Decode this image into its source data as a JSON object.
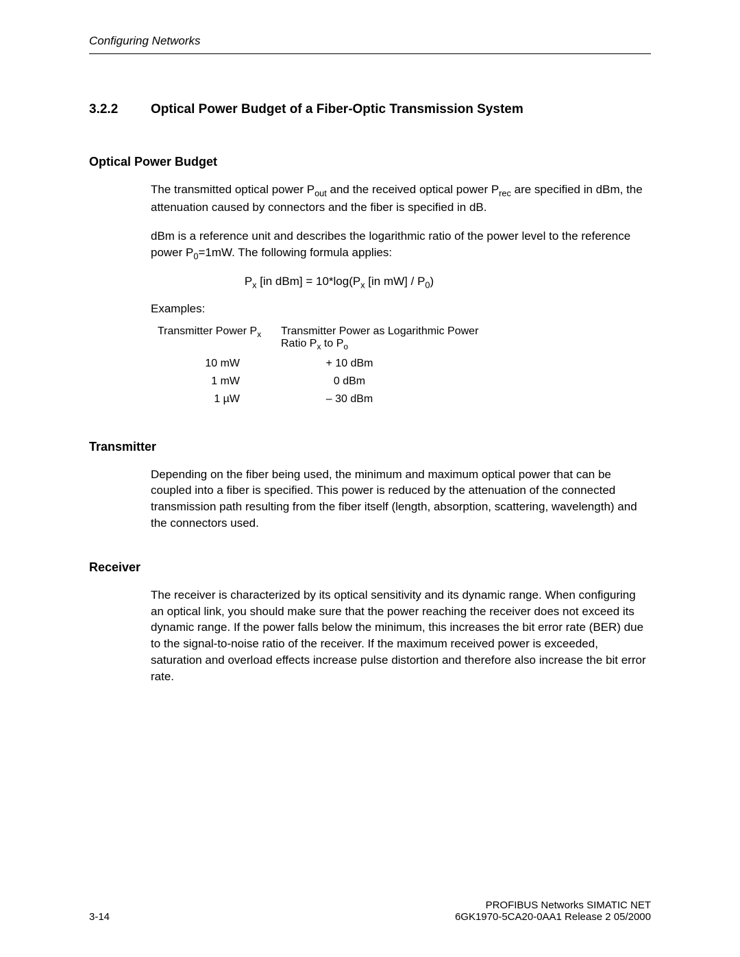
{
  "header": {
    "running_title": "Configuring Networks"
  },
  "section": {
    "number": "3.2.2",
    "title": "Optical Power Budget of a Fiber-Optic Transmission System"
  },
  "optical_power_budget": {
    "heading": "Optical Power Budget",
    "para1_pre": "The transmitted optical power P",
    "para1_sub1": "out",
    "para1_mid": " and the received optical power P",
    "para1_sub2": "rec",
    "para1_post": " are specified in dBm, the attenuation caused by connectors and the fiber is specified in dB.",
    "para2_pre": "dBm is a reference unit and describes the logarithmic ratio of the power level to the reference power P",
    "para2_sub": "0",
    "para2_post": "=1mW. The following formula applies:",
    "formula_a": "P",
    "formula_sub1": "x",
    "formula_b": " [in dBm] = 10*log(P",
    "formula_sub2": "x",
    "formula_c": " [in mW] / P",
    "formula_sub3": "0",
    "formula_d": ")",
    "examples_label": "Examples:",
    "table_header_col1_a": "Transmitter Power P",
    "table_header_col1_sub": "x",
    "table_header_col2_a": "Transmitter Power as Logarithmic Power Ratio P",
    "table_header_col2_sub1": "x",
    "table_header_col2_b": " to P",
    "table_header_col2_sub2": "o",
    "rows": [
      {
        "power": "10  mW",
        "dbm": "+ 10 dBm"
      },
      {
        "power": "1  mW",
        "dbm": "0  dBm"
      },
      {
        "power": "1  µW",
        "dbm": "– 30   dBm"
      }
    ]
  },
  "transmitter": {
    "heading": "Transmitter",
    "para": "Depending on the fiber being used, the minimum and maximum optical power that can be coupled into a fiber is specified. This power is reduced by the attenuation of the connected transmission path resulting from the fiber itself (length, absorption, scattering, wavelength) and the connectors used."
  },
  "receiver": {
    "heading": "Receiver",
    "para": "The receiver is characterized by its optical sensitivity and its dynamic range. When configuring an optical link, you should make sure that the power reaching the receiver does not exceed its dynamic range. If the power falls below the minimum, this increases the bit error rate (BER) due to the signal-to-noise ratio of the receiver. If the maximum received power is exceeded, saturation and overload effects increase pulse distortion and therefore also increase the bit error rate."
  },
  "footer": {
    "page_num": "3-14",
    "line1": "PROFIBUS Networks SIMATIC NET",
    "line2": "6GK1970-5CA20-0AA1 Release 2 05/2000"
  }
}
